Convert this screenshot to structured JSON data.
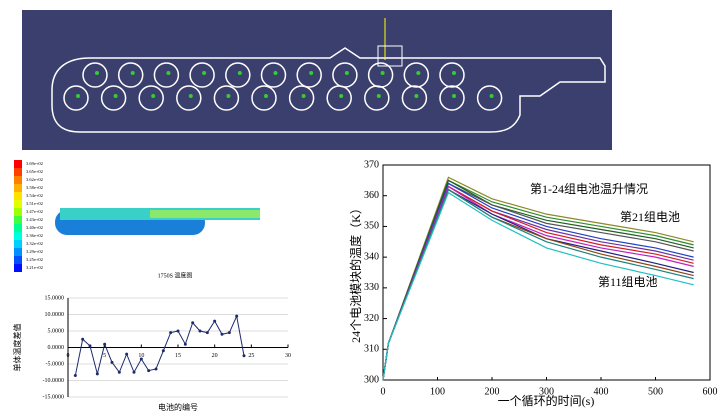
{
  "contour": {
    "caption": "1750S 温度图",
    "legend_labels": [
      "3.69e+02",
      "3.65e+02",
      "3.62e+02",
      "3.58e+02",
      "3.54e+02",
      "3.51e+02",
      "3.47e+02",
      "3.43e+02",
      "3.40e+02",
      "3.36e+02",
      "3.32e+02",
      "3.29e+02",
      "3.25e+02",
      "3.21e+02"
    ]
  },
  "chart_data": [
    {
      "type": "line",
      "y_label": "单体温度差值",
      "x_label": "电池的编号",
      "x": [
        1,
        2,
        3,
        4,
        5,
        6,
        7,
        8,
        9,
        10,
        11,
        12,
        13,
        14,
        15,
        16,
        17,
        18,
        19,
        20,
        21,
        22,
        23,
        24
      ],
      "series": [
        {
          "color": "#1f2a6b",
          "values": [
            -8.5,
            2.5,
            0.5,
            -8,
            1,
            -4.5,
            -7.5,
            -2,
            -7.5,
            -3.5,
            -7,
            -6.5,
            -1,
            4.5,
            5,
            1,
            7.5,
            5,
            4.5,
            8,
            4,
            4.5,
            9.5,
            -2.5
          ]
        }
      ],
      "xlim": [
        0,
        30
      ],
      "xticks": [
        0,
        5,
        10,
        15,
        20,
        25,
        30
      ],
      "ylim": [
        -15,
        15
      ],
      "yticks": [
        {
          "value": -15,
          "label": "-15.0000"
        },
        {
          "value": -10,
          "label": "-10.0000"
        },
        {
          "value": -5,
          "label": "-5.0000"
        },
        {
          "value": 0,
          "label": "0.0000"
        },
        {
          "value": 5,
          "label": "5.0000"
        },
        {
          "value": 10,
          "label": "10.0000"
        },
        {
          "value": 15,
          "label": "15.0000"
        }
      ],
      "grid": true
    },
    {
      "type": "line",
      "y_label": "24个电池模块的温度（K）",
      "x_label": "一个循环的时间(s)",
      "annotations": [
        "第1-24组电池温升情况",
        "第21组电池",
        "第11组电池"
      ],
      "x": [
        0,
        10,
        120,
        200,
        300,
        400,
        500,
        570
      ],
      "series": [
        {
          "color": "#8a8a2a",
          "values": [
            300,
            312,
            366,
            359,
            354,
            351,
            348,
            345
          ]
        },
        {
          "color": "#2e8b2e",
          "values": [
            300,
            312,
            365,
            358,
            353,
            350,
            347,
            344
          ]
        },
        {
          "color": "#1e5e1e",
          "values": [
            300,
            312,
            365,
            357,
            352,
            349,
            346,
            343
          ]
        },
        {
          "color": "#555555",
          "values": [
            300,
            312,
            364,
            357,
            351,
            348,
            345,
            342
          ]
        },
        {
          "color": "#2040c0",
          "values": [
            300,
            312,
            364,
            356,
            350,
            346,
            343,
            340
          ]
        },
        {
          "color": "#7030a0",
          "values": [
            300,
            312,
            363,
            355,
            349,
            345,
            342,
            339
          ]
        },
        {
          "color": "#d02020",
          "values": [
            300,
            312,
            363,
            355,
            348,
            344,
            341,
            338
          ]
        },
        {
          "color": "#c020c0",
          "values": [
            300,
            312,
            363,
            354,
            347,
            343,
            340,
            337
          ]
        },
        {
          "color": "#202080",
          "values": [
            300,
            312,
            362,
            354,
            346,
            342,
            338,
            335
          ]
        },
        {
          "color": "#8b4513",
          "values": [
            300,
            312,
            362,
            353,
            346,
            341,
            337,
            334
          ]
        },
        {
          "color": "#208080",
          "values": [
            300,
            312,
            362,
            353,
            345,
            340,
            336,
            333
          ]
        },
        {
          "color": "#20c0c0",
          "values": [
            300,
            312,
            361,
            352,
            343,
            338,
            334,
            331
          ]
        }
      ],
      "xlim": [
        0,
        600
      ],
      "xticks": [
        0,
        100,
        200,
        300,
        400,
        500,
        600
      ],
      "ylim": [
        300,
        370
      ],
      "yticks": [
        300,
        310,
        320,
        330,
        340,
        350,
        360,
        370
      ],
      "grid": false
    }
  ]
}
